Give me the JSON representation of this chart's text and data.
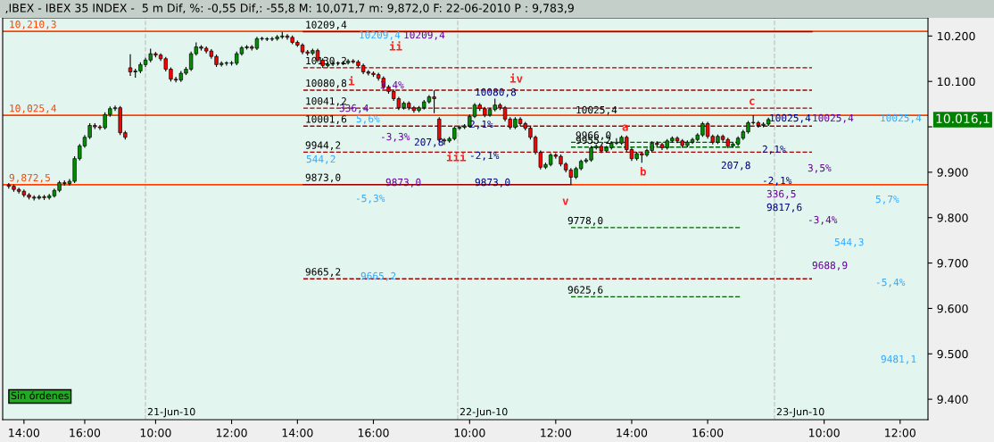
{
  "chart_data": {
    "type": "candlestick",
    "title": ",IBEX - IBEX 35 INDEX -  5 m Dif, %: -0,55 Dif,: -55,8 M: 10,071,7 m: 9,872,0 F: 22-06-2010 P : 9,783,9",
    "categories": [
      null,
      null,
      null,
      "14:00",
      null,
      null,
      null,
      null,
      null,
      null,
      null,
      null,
      null,
      null,
      null,
      "16:00",
      null,
      null,
      null,
      null,
      null,
      null,
      null,
      null,
      null,
      null,
      null,
      null,
      null,
      "10:00",
      null,
      null,
      null,
      null,
      null,
      null,
      null,
      null,
      null,
      null,
      null,
      null,
      null,
      null,
      "12:00",
      null,
      null,
      null,
      null,
      null,
      null,
      null,
      null,
      null,
      null,
      null,
      null,
      "14:00",
      null,
      null,
      null,
      null,
      null,
      null,
      null,
      null,
      null,
      null,
      null,
      null,
      null,
      null,
      "16:00",
      null,
      null,
      null,
      null,
      null,
      null,
      null,
      null,
      null,
      null,
      null,
      null,
      null,
      null,
      null,
      null,
      null,
      null,
      "10:00",
      null,
      null,
      null,
      null,
      null,
      null,
      null,
      null,
      null,
      null,
      null,
      null,
      null,
      null,
      null,
      null,
      "12:00",
      null,
      null,
      null,
      null,
      null,
      null,
      null,
      null,
      null,
      null,
      null,
      null,
      null,
      null,
      "14:00",
      null,
      null,
      null,
      null,
      null,
      null,
      null,
      null,
      null,
      null,
      null,
      null,
      null,
      null,
      "16:00",
      null,
      null,
      null,
      null,
      null,
      null,
      null,
      null,
      null,
      null,
      null,
      null,
      null,
      null,
      null,
      null,
      null,
      null,
      null,
      null,
      null,
      null,
      "10:00",
      null,
      null,
      null,
      null,
      null,
      null,
      null,
      null,
      null,
      null,
      null,
      null,
      null,
      null,
      "12:00",
      null,
      null,
      null,
      null,
      null
    ],
    "ohlc": [
      [
        9872,
        9876,
        9864,
        9869
      ],
      [
        9869,
        9873,
        9857,
        9862
      ],
      [
        9862,
        9866,
        9853,
        9858
      ],
      [
        9858,
        9862,
        9845,
        9850
      ],
      [
        9850,
        9854,
        9840,
        9845
      ],
      [
        9845,
        9849,
        9838,
        9843
      ],
      [
        9843,
        9850,
        9840,
        9846
      ],
      [
        9846,
        9850,
        9839,
        9844
      ],
      [
        9844,
        9852,
        9840,
        9848
      ],
      [
        9848,
        9864,
        9844,
        9860
      ],
      [
        9860,
        9881,
        9856,
        9877
      ],
      [
        9877,
        9882,
        9871,
        9875
      ],
      [
        9875,
        9885,
        9871,
        9880
      ],
      [
        9880,
        9935,
        9876,
        9930
      ],
      [
        9930,
        9962,
        9926,
        9958
      ],
      [
        9958,
        9982,
        9954,
        9977
      ],
      [
        9977,
        10008,
        9973,
        10003
      ],
      [
        10003,
        10008,
        9995,
        10000
      ],
      [
        10000,
        10004,
        9993,
        9998
      ],
      [
        9998,
        10032,
        9994,
        10027
      ],
      [
        10027,
        10045,
        10022,
        10040
      ],
      [
        10040,
        10047,
        10035,
        10042
      ],
      [
        10042,
        10046,
        9982,
        9987
      ],
      [
        9987,
        9991,
        9972,
        9977
      ],
      [
        10130,
        10160,
        10112,
        10121
      ],
      [
        10121,
        10128,
        10108,
        10123
      ],
      [
        10123,
        10142,
        10118,
        10137
      ],
      [
        10137,
        10152,
        10132,
        10147
      ],
      [
        10147,
        10172,
        10142,
        10161
      ],
      [
        10161,
        10165,
        10153,
        10158
      ],
      [
        10158,
        10162,
        10145,
        10150
      ],
      [
        10150,
        10154,
        10122,
        10127
      ],
      [
        10127,
        10131,
        10100,
        10105
      ],
      [
        10105,
        10110,
        10098,
        10103
      ],
      [
        10103,
        10123,
        10099,
        10118
      ],
      [
        10118,
        10132,
        10114,
        10127
      ],
      [
        10127,
        10166,
        10123,
        10161
      ],
      [
        10161,
        10186,
        10157,
        10176
      ],
      [
        10176,
        10180,
        10168,
        10173
      ],
      [
        10173,
        10177,
        10162,
        10167
      ],
      [
        10167,
        10171,
        10150,
        10155
      ],
      [
        10155,
        10159,
        10132,
        10137
      ],
      [
        10137,
        10144,
        10133,
        10140
      ],
      [
        10140,
        10144,
        10135,
        10140
      ],
      [
        10140,
        10145,
        10135,
        10140
      ],
      [
        10140,
        10166,
        10136,
        10161
      ],
      [
        10161,
        10178,
        10157,
        10174
      ],
      [
        10174,
        10180,
        10170,
        10176
      ],
      [
        10176,
        10180,
        10168,
        10173
      ],
      [
        10173,
        10198,
        10169,
        10194
      ],
      [
        10194,
        10198,
        10190,
        10194
      ],
      [
        10194,
        10197,
        10189,
        10193
      ],
      [
        10193,
        10198,
        10189,
        10194
      ],
      [
        10194,
        10202,
        10190,
        10198
      ],
      [
        10198,
        10209,
        10194,
        10200
      ],
      [
        10200,
        10204,
        10192,
        10197
      ],
      [
        10197,
        10201,
        10182,
        10186
      ],
      [
        10186,
        10190,
        10176,
        10180
      ],
      [
        10180,
        10184,
        10160,
        10165
      ],
      [
        10165,
        10169,
        10157,
        10162
      ],
      [
        10162,
        10172,
        10158,
        10168
      ],
      [
        10168,
        10172,
        10142,
        10147
      ],
      [
        10147,
        10151,
        10130,
        10135
      ],
      [
        10135,
        10142,
        10131,
        10138
      ],
      [
        10138,
        10144,
        10134,
        10140
      ],
      [
        10140,
        10144,
        10136,
        10140
      ],
      [
        10140,
        10145,
        10136,
        10141
      ],
      [
        10141,
        10149,
        10137,
        10145
      ],
      [
        10145,
        10149,
        10139,
        10143
      ],
      [
        10143,
        10147,
        10130,
        10135
      ],
      [
        10135,
        10139,
        10116,
        10121
      ],
      [
        10121,
        10125,
        10113,
        10118
      ],
      [
        10118,
        10122,
        10110,
        10115
      ],
      [
        10115,
        10119,
        10102,
        10107
      ],
      [
        10107,
        10111,
        10083,
        10088
      ],
      [
        10088,
        10092,
        10073,
        10078
      ],
      [
        10078,
        10082,
        10057,
        10062
      ],
      [
        10062,
        10066,
        10037,
        10042
      ],
      [
        10042,
        10056,
        10038,
        10052
      ],
      [
        10052,
        10056,
        10037,
        10042
      ],
      [
        10042,
        10046,
        10031,
        10036
      ],
      [
        10036,
        10046,
        10032,
        10042
      ],
      [
        10042,
        10059,
        10038,
        10055
      ],
      [
        10055,
        10070,
        10051,
        10066
      ],
      [
        10066,
        10080,
        10030,
        10062
      ],
      [
        10017,
        10021,
        9966,
        9971
      ],
      [
        9971,
        9975,
        9960,
        9969
      ],
      [
        9969,
        9978,
        9965,
        9974
      ],
      [
        9974,
        10001,
        9970,
        9997
      ],
      [
        9997,
        10003,
        9993,
        9999
      ],
      [
        9999,
        10006,
        9995,
        10002
      ],
      [
        10002,
        10027,
        9998,
        10023
      ],
      [
        10023,
        10052,
        10019,
        10048
      ],
      [
        10048,
        10052,
        10035,
        10040
      ],
      [
        10040,
        10044,
        10021,
        10026
      ],
      [
        10026,
        10042,
        10022,
        10038
      ],
      [
        10038,
        10062,
        10034,
        10048
      ],
      [
        10048,
        10052,
        10037,
        10042
      ],
      [
        10042,
        10046,
        10012,
        10017
      ],
      [
        10017,
        10021,
        9994,
        9999
      ],
      [
        9999,
        10021,
        9995,
        10017
      ],
      [
        10017,
        10021,
        10002,
        10007
      ],
      [
        10007,
        10011,
        9992,
        9997
      ],
      [
        9997,
        10001,
        9972,
        9977
      ],
      [
        9977,
        9981,
        9939,
        9944
      ],
      [
        9944,
        9948,
        9906,
        9911
      ],
      [
        9911,
        9921,
        9907,
        9917
      ],
      [
        9917,
        9942,
        9913,
        9938
      ],
      [
        9938,
        9942,
        9930,
        9935
      ],
      [
        9935,
        9939,
        9913,
        9918
      ],
      [
        9918,
        9922,
        9900,
        9905
      ],
      [
        9905,
        9909,
        9873,
        9889
      ],
      [
        9889,
        9912,
        9885,
        9908
      ],
      [
        9908,
        9928,
        9904,
        9924
      ],
      [
        9924,
        9931,
        9920,
        9927
      ],
      [
        9927,
        9958,
        9923,
        9954
      ],
      [
        9954,
        9961,
        9950,
        9957
      ],
      [
        9957,
        9961,
        9942,
        9947
      ],
      [
        9947,
        9958,
        9943,
        9954
      ],
      [
        9954,
        9968,
        9950,
        9964
      ],
      [
        9964,
        9975,
        9960,
        9964
      ],
      [
        9964,
        9981,
        9960,
        9977
      ],
      [
        9977,
        9981,
        9945,
        9950
      ],
      [
        9950,
        9954,
        9925,
        9930
      ],
      [
        9930,
        9945,
        9926,
        9941
      ],
      [
        9941,
        9945,
        9921,
        9938
      ],
      [
        9938,
        9952,
        9934,
        9948
      ],
      [
        9948,
        9968,
        9944,
        9964
      ],
      [
        9964,
        9968,
        9956,
        9961
      ],
      [
        9961,
        9965,
        9949,
        9954
      ],
      [
        9954,
        9973,
        9950,
        9969
      ],
      [
        9969,
        9979,
        9965,
        9975
      ],
      [
        9975,
        9979,
        9964,
        9969
      ],
      [
        9969,
        9973,
        9954,
        9959
      ],
      [
        9959,
        9970,
        9955,
        9966
      ],
      [
        9966,
        9976,
        9962,
        9972
      ],
      [
        9972,
        9986,
        9968,
        9982
      ],
      [
        9982,
        10011,
        9978,
        10007
      ],
      [
        10007,
        10011,
        9974,
        9979
      ],
      [
        9979,
        9983,
        9961,
        9966
      ],
      [
        9966,
        9983,
        9962,
        9979
      ],
      [
        9979,
        9983,
        9967,
        9972
      ],
      [
        9972,
        9976,
        9953,
        9958
      ],
      [
        9958,
        9966,
        9954,
        9962
      ],
      [
        9962,
        9979,
        9958,
        9975
      ],
      [
        9975,
        9993,
        9971,
        9989
      ],
      [
        9989,
        10013,
        9985,
        10009
      ],
      [
        10009,
        10025.4,
        10005,
        10009
      ],
      [
        10009,
        10013,
        9998,
        10003
      ],
      [
        10003,
        10010,
        9999,
        10006
      ],
      [
        10006,
        10020,
        10002,
        10016.1
      ],
      null,
      null,
      null,
      null,
      null,
      null,
      null,
      null,
      null,
      null,
      null,
      null,
      null,
      null,
      null,
      null,
      null,
      null,
      null,
      null,
      null,
      null,
      null,
      null,
      null,
      null,
      null,
      null,
      null,
      null,
      null
    ],
    "ylim": [
      9355,
      10240
    ],
    "yticks": [
      {
        "value": 9400,
        "label": "9.400"
      },
      {
        "value": 9500,
        "label": "9.500"
      },
      {
        "value": 9600,
        "label": "9.600"
      },
      {
        "value": 9700,
        "label": "9.700"
      },
      {
        "value": 9800,
        "label": "9.800"
      },
      {
        "value": 9900,
        "label": "9.900"
      },
      {
        "value": 10000,
        "label": null
      },
      {
        "value": 10100,
        "label": "10.100"
      },
      {
        "value": 10200,
        "label": "10.200"
      }
    ],
    "grid": false,
    "ref_lines": [
      {
        "axis": "y",
        "value": 10210.3,
        "label": "10,210,3",
        "color": "#ff4000",
        "line_style": "solid"
      },
      {
        "axis": "y",
        "value": 10025.4,
        "label": "10,025,4",
        "color": "#ff4000",
        "line_style": "solid"
      },
      {
        "axis": "y",
        "value": 9872.5,
        "label": "9,872,5",
        "color": "#ff4000",
        "line_style": "solid"
      },
      {
        "axis": "y",
        "value": 10209.4,
        "label": "10209,4",
        "color": "#a00000",
        "line_style": "solid"
      },
      {
        "axis": "y",
        "value": 10130.2,
        "label": "10130,2",
        "color": "#a00000",
        "line_style": "dashed"
      },
      {
        "axis": "y",
        "value": 10080.8,
        "label": "10080,8",
        "color": "#a00000",
        "line_style": "dashed"
      },
      {
        "axis": "y",
        "value": 10041.2,
        "label": "10041,2",
        "color": "#a00000",
        "line_style": "dashed"
      },
      {
        "axis": "y",
        "value": 10001.6,
        "label": "10001,6",
        "color": "#a00000",
        "line_style": "dashed"
      },
      {
        "axis": "y",
        "value": 9944.2,
        "label": "9944,2",
        "color": "#a00000",
        "line_style": "dashed"
      },
      {
        "axis": "y",
        "value": 9873.0,
        "label": "9873,0",
        "color": "#a00000",
        "line_style": "solid"
      },
      {
        "axis": "y",
        "value": 9665.2,
        "label": "9665,2",
        "color": "#a00000",
        "line_style": "dashed"
      },
      {
        "axis": "y",
        "value": 9966.0,
        "label": "9966,0",
        "color": "#006000",
        "line_style": "dashed"
      },
      {
        "axis": "y",
        "value": 9955.2,
        "label": "9955,2",
        "color": "#006000",
        "line_style": "dashed"
      },
      {
        "axis": "y",
        "value": 9778.0,
        "label": "9778,0",
        "color": "#006000",
        "line_style": "dashed"
      },
      {
        "axis": "y",
        "value": 9625.6,
        "label": "9625,6",
        "color": "#006000",
        "line_style": "dashed"
      }
    ],
    "annotations": [
      "Sin órdenes",
      "10.016,1",
      "10025,4",
      "10209,4",
      "5,6%",
      "544,2",
      "-5,3%",
      "9665,2",
      "10209,4",
      "336,4",
      "3,4%",
      "-3,3%",
      "9873,0",
      "10080,8",
      "207,8",
      "2,1%",
      "-2,1%",
      "9873,0",
      "10025,4",
      "2,1%",
      "207,8",
      "-2,1%",
      "336,5",
      "9817,6",
      "10025,4",
      "3,5%",
      "-3,4%",
      "9688,9",
      "10025,4",
      "5,7%",
      "544,3",
      "-5,4%",
      "9481,1",
      "i",
      "ii",
      "iii",
      "iv",
      "v",
      "a",
      "b",
      "c",
      "21-Jun-10",
      "22-Jun-10",
      "23-Jun-10"
    ]
  }
}
